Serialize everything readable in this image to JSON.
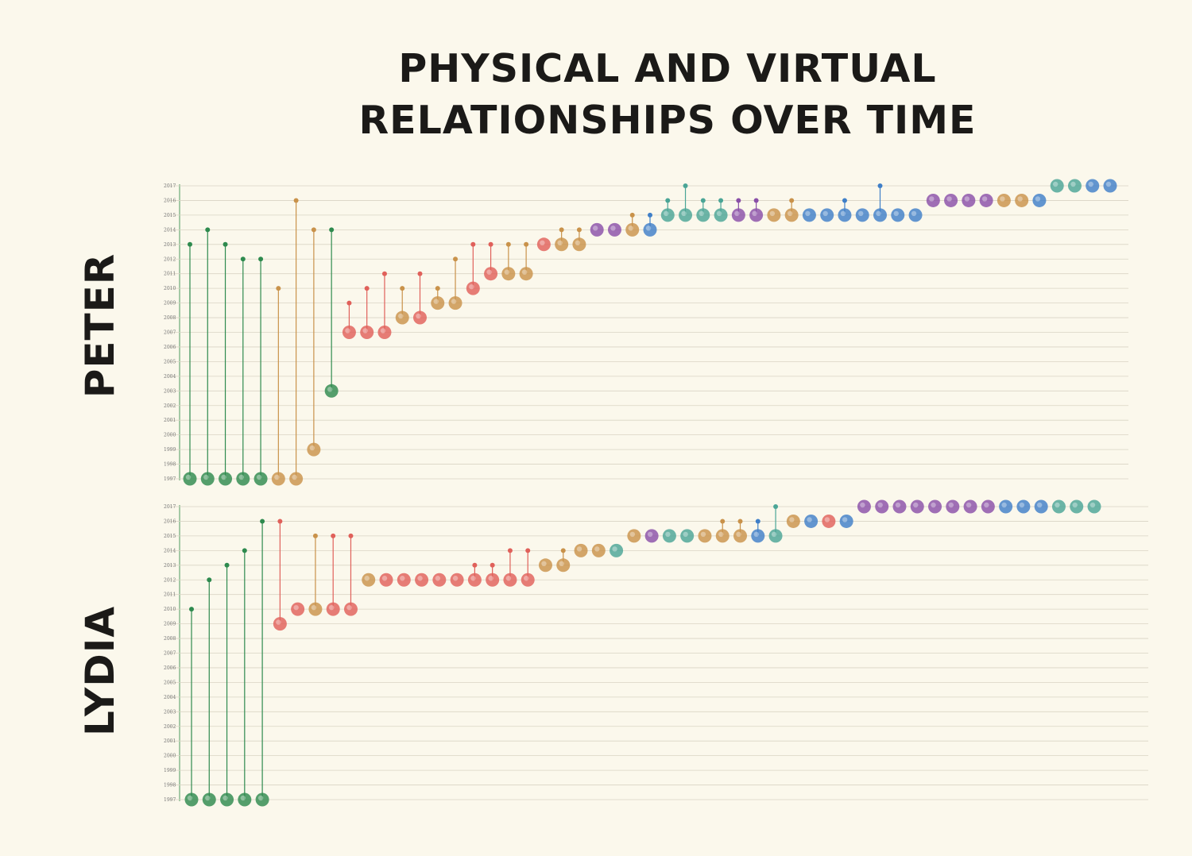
{
  "title": [
    "PHYSICAL AND VIRTUAL",
    "RELATIONSHIPS OVER TIME"
  ],
  "colors": {
    "background": "#fbf8ec",
    "green": "#2e8a4e",
    "tan": "#c9924a",
    "red": "#e0605a",
    "teal": "#4aa596",
    "purple": "#8a4fa8",
    "blue": "#3f7fc8"
  },
  "chart_data": [
    {
      "type": "scatter",
      "panel": "PETER",
      "ylim": [
        1997,
        2017
      ],
      "yticks": [
        1997,
        1998,
        1999,
        2000,
        2001,
        2002,
        2003,
        2004,
        2005,
        2006,
        2007,
        2008,
        2009,
        2010,
        2011,
        2012,
        2013,
        2014,
        2015,
        2016,
        2017
      ],
      "points": [
        {
          "y": 1997,
          "top": 2013,
          "c": "green"
        },
        {
          "y": 1997,
          "top": 2014,
          "c": "green"
        },
        {
          "y": 1997,
          "top": 2013,
          "c": "green"
        },
        {
          "y": 1997,
          "top": 2012,
          "c": "green"
        },
        {
          "y": 1997,
          "top": 2012,
          "c": "green"
        },
        {
          "y": 1997,
          "top": 2010,
          "c": "tan"
        },
        {
          "y": 1997,
          "top": 2016,
          "c": "tan"
        },
        {
          "y": 1999,
          "top": 2014,
          "c": "tan"
        },
        {
          "y": 2003,
          "top": 2014,
          "c": "green"
        },
        {
          "y": 2007,
          "top": 2009,
          "c": "red"
        },
        {
          "y": 2007,
          "top": 2010,
          "c": "red"
        },
        {
          "y": 2007,
          "top": 2011,
          "c": "red"
        },
        {
          "y": 2008,
          "top": 2010,
          "c": "tan"
        },
        {
          "y": 2008,
          "top": 2011,
          "c": "red"
        },
        {
          "y": 2009,
          "top": 2010,
          "c": "tan"
        },
        {
          "y": 2009,
          "top": 2012,
          "c": "tan"
        },
        {
          "y": 2010,
          "top": 2013,
          "c": "red"
        },
        {
          "y": 2011,
          "top": 2013,
          "c": "red"
        },
        {
          "y": 2011,
          "top": 2013,
          "c": "tan"
        },
        {
          "y": 2011,
          "top": 2013,
          "c": "tan"
        },
        {
          "y": 2013,
          "c": "red"
        },
        {
          "y": 2013,
          "top": 2014,
          "c": "tan"
        },
        {
          "y": 2013,
          "top": 2014,
          "c": "tan"
        },
        {
          "y": 2014,
          "c": "purple"
        },
        {
          "y": 2014,
          "c": "purple"
        },
        {
          "y": 2014,
          "top": 2015,
          "c": "tan"
        },
        {
          "y": 2014,
          "top": 2015,
          "c": "blue"
        },
        {
          "y": 2015,
          "top": 2016,
          "c": "teal"
        },
        {
          "y": 2015,
          "top": 2017,
          "c": "teal"
        },
        {
          "y": 2015,
          "top": 2016,
          "c": "teal"
        },
        {
          "y": 2015,
          "top": 2016,
          "c": "teal"
        },
        {
          "y": 2015,
          "top": 2016,
          "c": "purple"
        },
        {
          "y": 2015,
          "top": 2016,
          "c": "purple"
        },
        {
          "y": 2015,
          "c": "tan"
        },
        {
          "y": 2015,
          "top": 2016,
          "c": "tan"
        },
        {
          "y": 2015,
          "c": "blue"
        },
        {
          "y": 2015,
          "c": "blue"
        },
        {
          "y": 2015,
          "top": 2016,
          "c": "blue"
        },
        {
          "y": 2015,
          "c": "blue"
        },
        {
          "y": 2015,
          "top": 2017,
          "c": "blue"
        },
        {
          "y": 2015,
          "c": "blue"
        },
        {
          "y": 2015,
          "c": "blue"
        },
        {
          "y": 2016,
          "c": "purple"
        },
        {
          "y": 2016,
          "c": "purple"
        },
        {
          "y": 2016,
          "c": "purple"
        },
        {
          "y": 2016,
          "c": "purple"
        },
        {
          "y": 2016,
          "c": "tan"
        },
        {
          "y": 2016,
          "c": "tan"
        },
        {
          "y": 2016,
          "c": "blue"
        },
        {
          "y": 2017,
          "c": "teal"
        },
        {
          "y": 2017,
          "c": "teal"
        },
        {
          "y": 2017,
          "c": "blue"
        },
        {
          "y": 2017,
          "c": "blue"
        }
      ]
    },
    {
      "type": "scatter",
      "panel": "LYDIA",
      "ylim": [
        1997,
        2017
      ],
      "yticks": [
        1997,
        1998,
        1999,
        2000,
        2001,
        2002,
        2003,
        2004,
        2005,
        2006,
        2007,
        2008,
        2009,
        2010,
        2011,
        2012,
        2013,
        2014,
        2015,
        2016,
        2017
      ],
      "points": [
        {
          "y": 1997,
          "top": 2010,
          "c": "green"
        },
        {
          "y": 1997,
          "top": 2012,
          "c": "green"
        },
        {
          "y": 1997,
          "top": 2013,
          "c": "green"
        },
        {
          "y": 1997,
          "top": 2014,
          "c": "green"
        },
        {
          "y": 1997,
          "top": 2016,
          "c": "green"
        },
        {
          "y": 2009,
          "top": 2016,
          "c": "red"
        },
        {
          "y": 2010,
          "c": "red"
        },
        {
          "y": 2010,
          "top": 2015,
          "c": "tan"
        },
        {
          "y": 2010,
          "top": 2015,
          "c": "red"
        },
        {
          "y": 2010,
          "top": 2015,
          "c": "red"
        },
        {
          "y": 2012,
          "c": "tan"
        },
        {
          "y": 2012,
          "c": "red"
        },
        {
          "y": 2012,
          "c": "red"
        },
        {
          "y": 2012,
          "c": "red"
        },
        {
          "y": 2012,
          "c": "red"
        },
        {
          "y": 2012,
          "c": "red"
        },
        {
          "y": 2012,
          "top": 2013,
          "c": "red"
        },
        {
          "y": 2012,
          "top": 2013,
          "c": "red"
        },
        {
          "y": 2012,
          "top": 2014,
          "c": "red"
        },
        {
          "y": 2012,
          "top": 2014,
          "c": "red"
        },
        {
          "y": 2013,
          "c": "tan"
        },
        {
          "y": 2013,
          "top": 2014,
          "c": "tan"
        },
        {
          "y": 2014,
          "c": "tan"
        },
        {
          "y": 2014,
          "c": "tan"
        },
        {
          "y": 2014,
          "c": "teal"
        },
        {
          "y": 2015,
          "c": "tan"
        },
        {
          "y": 2015,
          "c": "purple"
        },
        {
          "y": 2015,
          "c": "teal"
        },
        {
          "y": 2015,
          "c": "teal"
        },
        {
          "y": 2015,
          "c": "tan"
        },
        {
          "y": 2015,
          "top": 2016,
          "c": "tan"
        },
        {
          "y": 2015,
          "top": 2016,
          "c": "tan"
        },
        {
          "y": 2015,
          "top": 2016,
          "c": "blue"
        },
        {
          "y": 2015,
          "top": 2017,
          "c": "teal"
        },
        {
          "y": 2016,
          "c": "tan"
        },
        {
          "y": 2016,
          "c": "blue"
        },
        {
          "y": 2016,
          "c": "red"
        },
        {
          "y": 2016,
          "c": "blue"
        },
        {
          "y": 2017,
          "c": "purple"
        },
        {
          "y": 2017,
          "c": "purple"
        },
        {
          "y": 2017,
          "c": "purple"
        },
        {
          "y": 2017,
          "c": "purple"
        },
        {
          "y": 2017,
          "c": "purple"
        },
        {
          "y": 2017,
          "c": "purple"
        },
        {
          "y": 2017,
          "c": "purple"
        },
        {
          "y": 2017,
          "c": "purple"
        },
        {
          "y": 2017,
          "c": "blue"
        },
        {
          "y": 2017,
          "c": "blue"
        },
        {
          "y": 2017,
          "c": "blue"
        },
        {
          "y": 2017,
          "c": "teal"
        },
        {
          "y": 2017,
          "c": "teal"
        },
        {
          "y": 2017,
          "c": "teal"
        }
      ]
    }
  ]
}
